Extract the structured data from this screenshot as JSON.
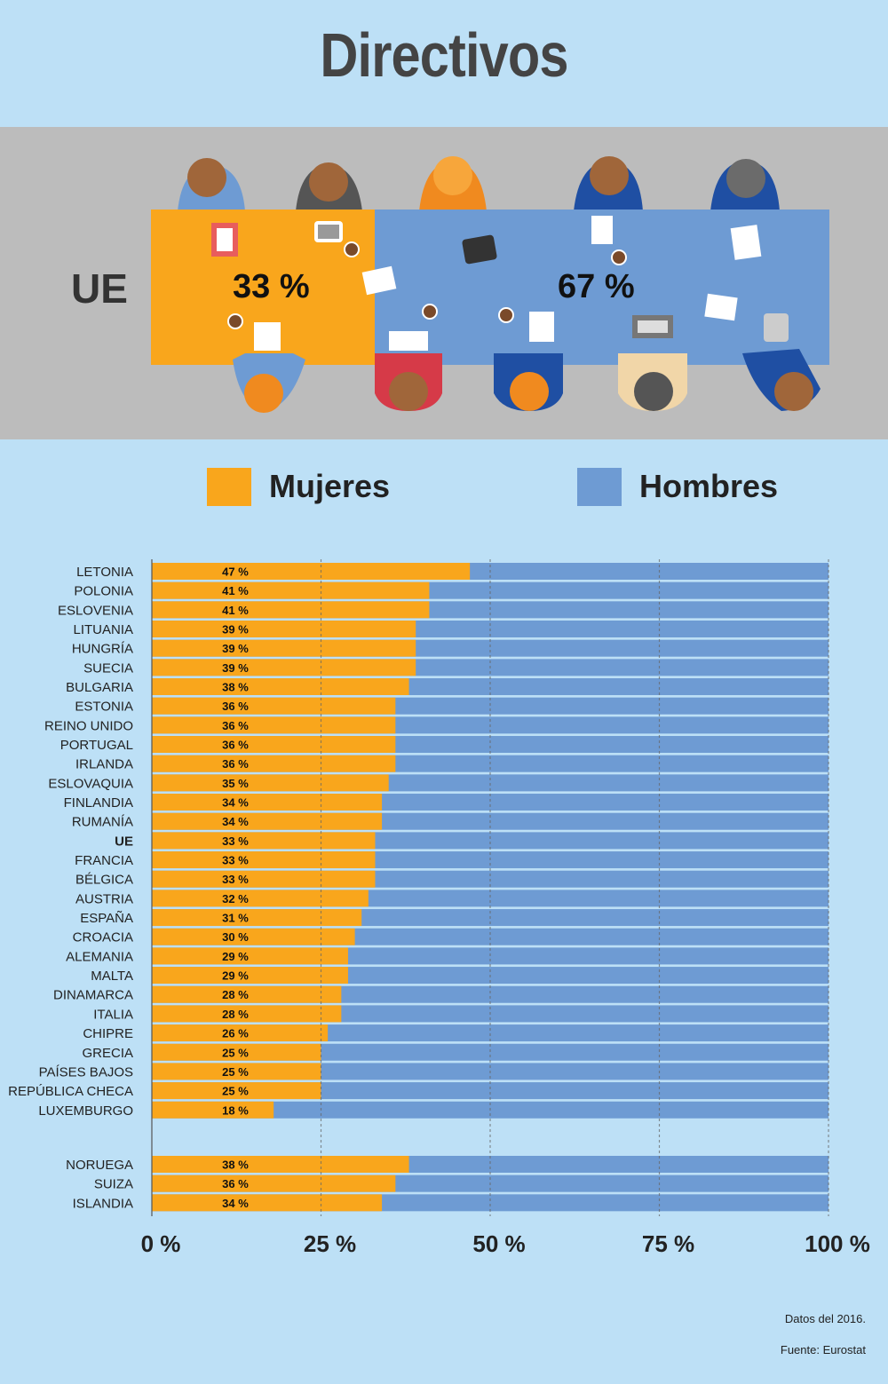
{
  "title": "Directivos",
  "hero": {
    "region_label": "UE",
    "women_pct_label": "33 %",
    "men_pct_label": "67 %",
    "women_share": 0.33,
    "colors": {
      "women": "#f9a61c",
      "men": "#6e9bd3",
      "table_bg": "#bcbcbc"
    }
  },
  "legend": {
    "women": "Mujeres",
    "men": "Hombres"
  },
  "chart_data": {
    "type": "bar",
    "orientation": "horizontal",
    "stacked": true,
    "xlim": [
      0,
      100
    ],
    "x_ticks": [
      "0 %",
      "25 %",
      "50 %",
      "75 %",
      "100 %"
    ],
    "x_tick_values": [
      0,
      25,
      50,
      75,
      100
    ],
    "grid": "dashed vertical",
    "colors": {
      "women": "#f9a61c",
      "men": "#6e9bd3"
    },
    "groups": [
      {
        "categories": [
          "LETONIA",
          "POLONIA",
          "ESLOVENIA",
          "LITUANIA",
          "HUNGRÍA",
          "SUECIA",
          "BULGARIA",
          "ESTONIA",
          "REINO UNIDO",
          "PORTUGAL",
          "IRLANDA",
          "ESLOVAQUIA",
          "FINLANDIA",
          "RUMANÍA",
          "UE",
          "FRANCIA",
          "BÉLGICA",
          "AUSTRIA",
          "ESPAÑA",
          "CROACIA",
          "ALEMANIA",
          "MALTA",
          "DINAMARCA",
          "ITALIA",
          "CHIPRE",
          "GRECIA",
          "PAÍSES BAJOS",
          "REPÚBLICA CHECA",
          "LUXEMBURGO"
        ],
        "values": [
          47,
          41,
          41,
          39,
          39,
          39,
          38,
          36,
          36,
          36,
          36,
          35,
          34,
          34,
          33,
          33,
          33,
          32,
          31,
          30,
          29,
          29,
          28,
          28,
          26,
          25,
          25,
          25,
          18
        ],
        "bold_categories": [
          "UE"
        ]
      },
      {
        "categories": [
          "NORUEGA",
          "SUIZA",
          "ISLANDIA"
        ],
        "values": [
          38,
          36,
          34
        ]
      }
    ],
    "value_suffix": " %"
  },
  "notes": {
    "date": "Datos del 2016.",
    "source": "Fuente: Eurostat"
  }
}
